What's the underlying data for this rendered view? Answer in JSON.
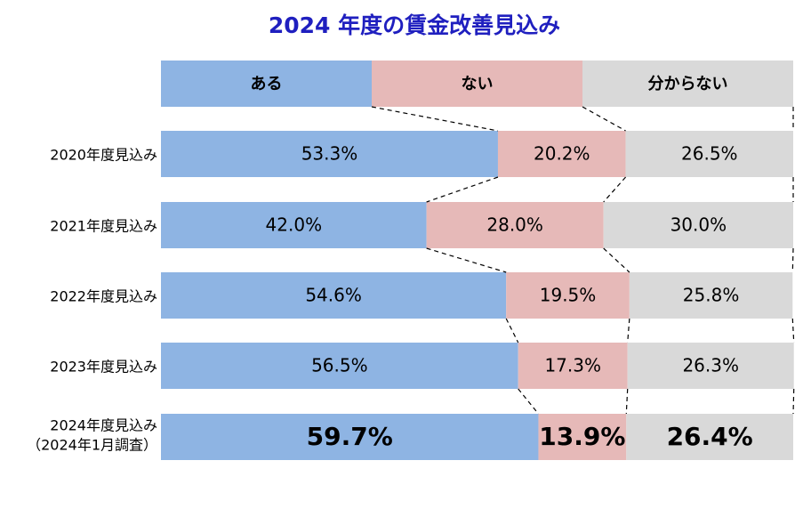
{
  "chart_data": {
    "type": "stacked_bar_100",
    "orientation": "horizontal",
    "title": "2024 年度の賃金改善見込み",
    "categories": [
      "2020年度見込み",
      "2021年度見込み",
      "2022年度見込み",
      "2023年度見込み",
      [
        "2024年度見込み",
        "（2024年1月調査）"
      ]
    ],
    "series": [
      {
        "name": "ある",
        "color": "#8eb4e3",
        "values": [
          53.3,
          42.0,
          54.6,
          56.5,
          59.7
        ],
        "value_labels": [
          "53.3%",
          "42.0%",
          "54.6%",
          "56.5%",
          "59.7%"
        ]
      },
      {
        "name": "ない",
        "color": "#e6b9b8",
        "values": [
          20.2,
          28.0,
          19.5,
          17.3,
          13.9
        ],
        "value_labels": [
          "20.2%",
          "28.0%",
          "19.5%",
          "17.3%",
          "13.9%"
        ]
      },
      {
        "name": "分からない",
        "color": "#d9d9d9",
        "values": [
          26.5,
          30.0,
          25.8,
          26.3,
          26.4
        ],
        "value_labels": [
          "26.5%",
          "30.0%",
          "25.8%",
          "26.3%",
          "26.4%"
        ]
      }
    ],
    "xlim": [
      0,
      100
    ]
  }
}
